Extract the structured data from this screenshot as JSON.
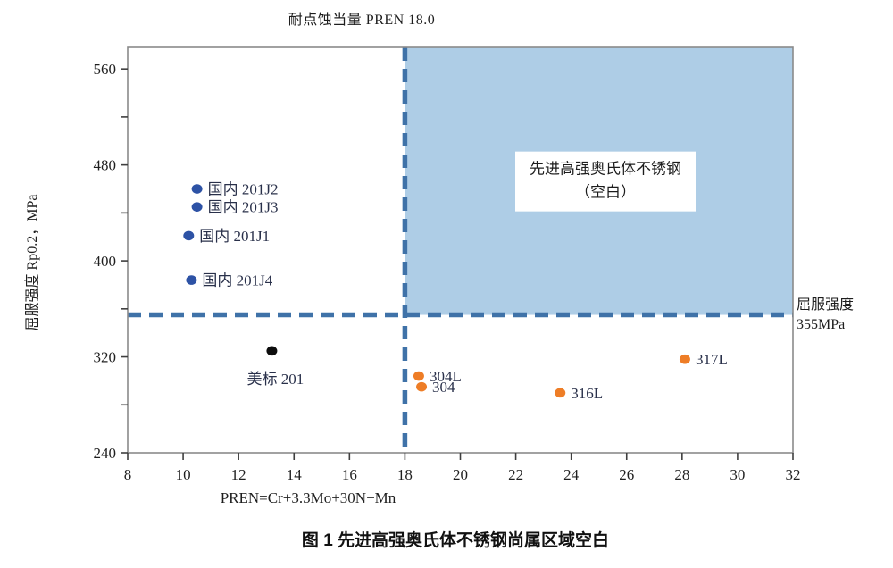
{
  "chart_data": {
    "type": "scatter",
    "title": "耐点蚀当量 PREN 18.0",
    "xlabel": "PREN=Cr+3.3Mo+30N−Mn",
    "ylabel": "屈服强度 Rp0.2，MPa",
    "caption": "图 1 先进高强奥氏体不锈钢尚属区域空白",
    "xlim": [
      8,
      32
    ],
    "ylim": [
      240,
      578
    ],
    "x_ticks": [
      8,
      10,
      12,
      14,
      16,
      18,
      20,
      22,
      24,
      26,
      28,
      30,
      32
    ],
    "y_ticks_major": [
      240,
      320,
      400,
      480,
      560
    ],
    "y_ticks_minor": [
      280,
      360,
      440,
      520
    ],
    "grid": false,
    "legend": "none",
    "reference_lines": [
      {
        "orientation": "vertical",
        "value": 18,
        "style": "dashed"
      },
      {
        "orientation": "horizontal",
        "value": 355,
        "style": "dashed"
      }
    ],
    "shaded_region": {
      "x_from": 18,
      "x_to": 32,
      "y_from": 355,
      "y_to": 578,
      "label_line1": "先进高强奥氏体不锈钢",
      "label_line2": "（空白）"
    },
    "threshold_label": {
      "line1": "屈服强度",
      "line2": "355MPa"
    },
    "series": [
      {
        "name": "blue",
        "color": "#2d52a5",
        "points": [
          {
            "label": "国内 201J2",
            "x": 10.5,
            "y": 460,
            "label_pos": "right"
          },
          {
            "label": "国内 201J3",
            "x": 10.5,
            "y": 445,
            "label_pos": "right"
          },
          {
            "label": "国内 201J1",
            "x": 10.2,
            "y": 421,
            "label_pos": "right"
          },
          {
            "label": "国内 201J4",
            "x": 10.3,
            "y": 384,
            "label_pos": "right"
          }
        ]
      },
      {
        "name": "black",
        "color": "#0d0d0d",
        "points": [
          {
            "label": "美标 201",
            "x": 13.2,
            "y": 325,
            "label_pos": "below"
          }
        ]
      },
      {
        "name": "orange",
        "color": "#ee7d26",
        "points": [
          {
            "label": "304L",
            "x": 18.5,
            "y": 304,
            "label_pos": "right"
          },
          {
            "label": "304",
            "x": 18.6,
            "y": 295,
            "label_pos": "right"
          },
          {
            "label": "316L",
            "x": 23.6,
            "y": 290,
            "label_pos": "right"
          },
          {
            "label": "317L",
            "x": 28.1,
            "y": 318,
            "label_pos": "right"
          }
        ]
      }
    ],
    "colors": {
      "region_fill": "#aecde6",
      "dashed_line": "#3f72a8",
      "axis_box": "#8a8a8a",
      "tick_mark": "#3f3f3f",
      "tick_label": "#1f1f1f",
      "point_label": "#29304a"
    }
  }
}
